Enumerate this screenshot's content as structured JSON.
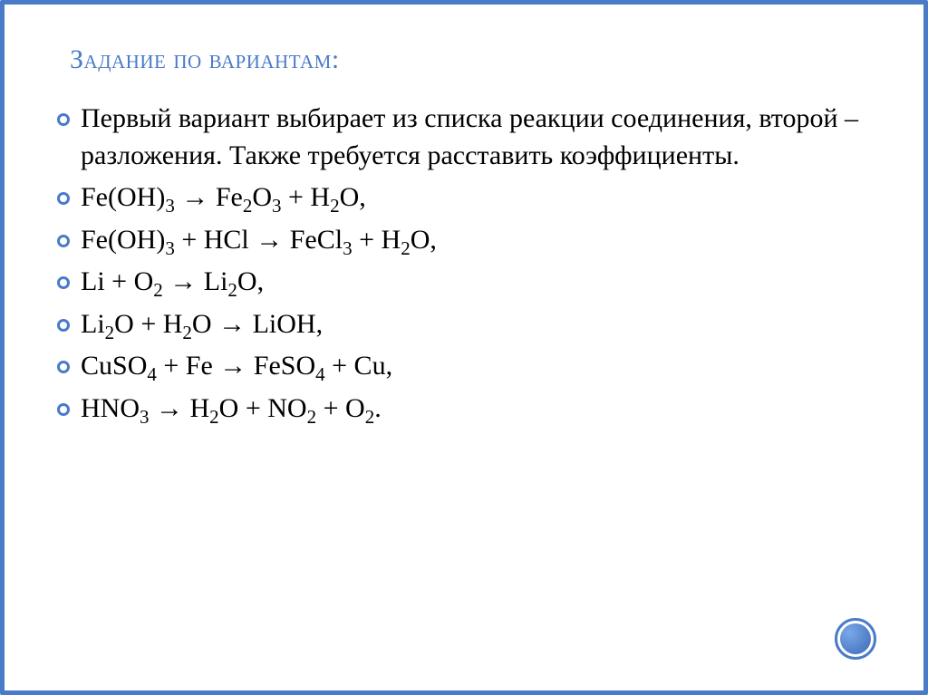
{
  "slide": {
    "title": "Задание по вариантам:",
    "title_color": "#4a7bc8",
    "title_fontsize": 30,
    "bullet_border_color": "#4a7bc8",
    "border_color": "#4a7bc8",
    "background_color": "#ffffff",
    "body_fontsize": 30,
    "body_color": "#000000",
    "intro": "Первый вариант выбирает из списка реакции соединения, второй – разложения. Также требуется расставить коэффициенты.",
    "equations_html": [
      "Fe(OH)<sub>3</sub>  → Fe<sub>2</sub>O<sub>3</sub> + H<sub>2</sub>O,",
      "Fe(OH)<sub>3</sub> + HCl  → FeCl<sub>3</sub> + H<sub>2</sub>O,",
      "Li + O<sub>2</sub>  → Li<sub>2</sub>O,",
      "Li<sub>2</sub>O + H<sub>2</sub>O   → LiOH,",
      "CuSO<sub>4</sub> + Fe  → FeSO<sub>4</sub> + Cu,",
      "HNO<sub>3</sub>  → H<sub>2</sub>O + NO<sub>2</sub> + O<sub>2</sub>."
    ],
    "corner_circle": {
      "outer_border": "#4a7bc8",
      "inner_gradient_from": "#7ba8e8",
      "inner_gradient_to": "#3a6ab8"
    }
  }
}
